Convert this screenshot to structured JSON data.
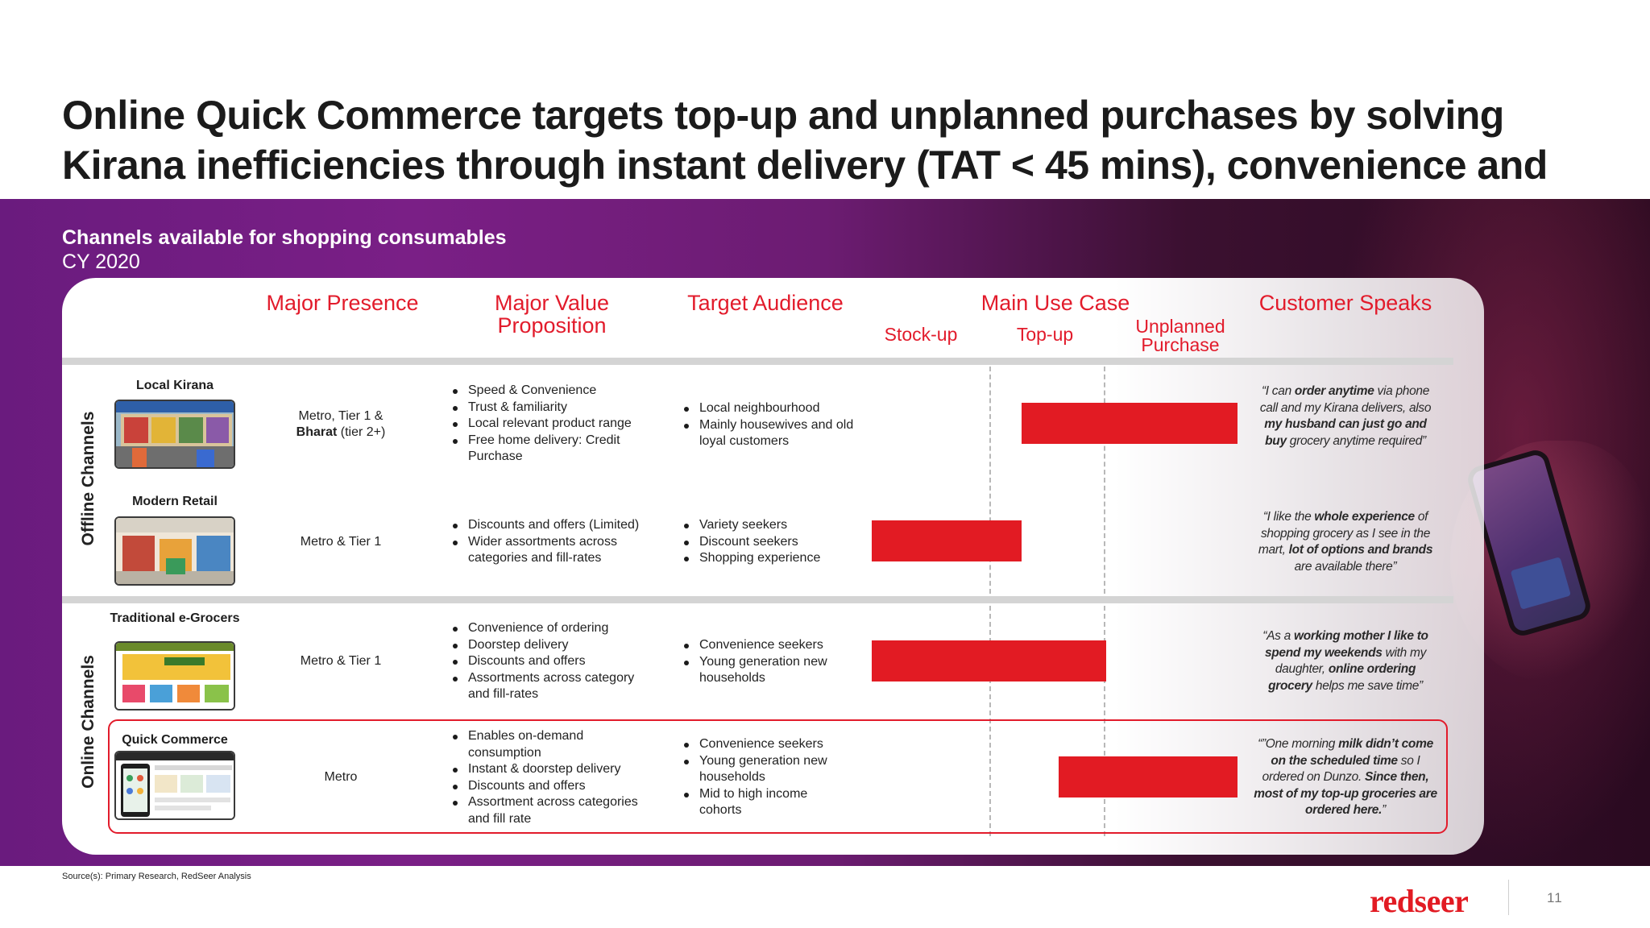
{
  "title": "Online Quick Commerce targets top-up and unplanned purchases by solving Kirana inefficiencies through instant delivery (TAT < 45 mins), convenience and reliability",
  "subtitle": "Channels available for shopping consumables",
  "subtitle_year": "CY 2020",
  "headers": {
    "presence": "Major Presence",
    "value": "Major Value Proposition",
    "audience": "Target Audience",
    "usecase": "Main Use Case",
    "speaks": "Customer Speaks",
    "stockup": "Stock-up",
    "topup": "Top-up",
    "unplanned": "Unplanned Purchase"
  },
  "groups": {
    "offline": "Offline Channels",
    "online": "Online Channels"
  },
  "colors": {
    "accent": "#e21b23",
    "band": "#6a1b7e"
  },
  "rows": [
    {
      "name": "Local Kirana",
      "presence_pre": "Metro, Tier 1 &",
      "presence_bold": "Bharat",
      "presence_post": " (tier 2+)",
      "value": [
        "Speed & Convenience",
        "Trust & familiarity",
        "Local relevant product range",
        "Free home delivery: Credit Purchase"
      ],
      "audience": [
        "Local neighbourhood",
        "Mainly housewives and old loyal customers"
      ],
      "quote": [
        {
          "t": "“I can ",
          "b": false
        },
        {
          "t": "order anytime",
          "b": true
        },
        {
          "t": " via phone call and my Kirana delivers, also ",
          "b": false
        },
        {
          "t": "my husband can just go and buy",
          "b": true
        },
        {
          "t": " grocery anytime required”",
          "b": false
        }
      ]
    },
    {
      "name": "Modern Retail",
      "presence": "Metro & Tier 1",
      "value": [
        "Discounts and offers (Limited)",
        "Wider assortments across categories and fill-rates"
      ],
      "audience": [
        "Variety seekers",
        "Discount seekers",
        "Shopping experience"
      ],
      "quote": [
        {
          "t": "“I like the ",
          "b": false
        },
        {
          "t": "whole experience",
          "b": true
        },
        {
          "t": " of shopping grocery as I see in the mart, ",
          "b": false
        },
        {
          "t": "lot of options and brands",
          "b": true
        },
        {
          "t": " are available there”",
          "b": false
        }
      ]
    },
    {
      "name": "Traditional e-Grocers",
      "presence": "Metro & Tier 1",
      "value": [
        "Convenience of ordering",
        "Doorstep delivery",
        "Discounts and offers",
        "Assortments across category and fill-rates"
      ],
      "audience": [
        "Convenience seekers",
        "Young generation new households"
      ],
      "quote": [
        {
          "t": "“As a ",
          "b": false
        },
        {
          "t": "working mother I like to spend my weekends",
          "b": true
        },
        {
          "t": " with my daughter, ",
          "b": false
        },
        {
          "t": "online ordering grocery",
          "b": true
        },
        {
          "t": " helps me save time”",
          "b": false
        }
      ]
    },
    {
      "name": "Quick Commerce",
      "presence": "Metro",
      "value": [
        "Enables on-demand consumption",
        "Instant & doorstep delivery",
        "Discounts and offers",
        "Assortment across categories and fill rate"
      ],
      "audience": [
        "Convenience seekers",
        "Young generation new households",
        "Mid to high income cohorts"
      ],
      "quote": [
        {
          "t": "“”One morning ",
          "b": false
        },
        {
          "t": "milk didn’t come on the scheduled time",
          "b": true
        },
        {
          "t": " so I ordered on Dunzo. ",
          "b": false
        },
        {
          "t": "Since then, most of my top-up groceries are ordered here.",
          "b": true
        },
        {
          "t": "”",
          "b": false
        }
      ]
    }
  ],
  "use_case_bars": [
    {
      "channel": "Local Kirana",
      "from": 0.41,
      "to": 1.0
    },
    {
      "channel": "Modern Retail",
      "from": 0.0,
      "to": 0.41
    },
    {
      "channel": "Traditional e-Grocers",
      "from": 0.0,
      "to": 0.64
    },
    {
      "channel": "Quick Commerce",
      "from": 0.51,
      "to": 1.0
    }
  ],
  "source": "Source(s): Primary Research, RedSeer Analysis",
  "logo": "redseer",
  "page": "11"
}
